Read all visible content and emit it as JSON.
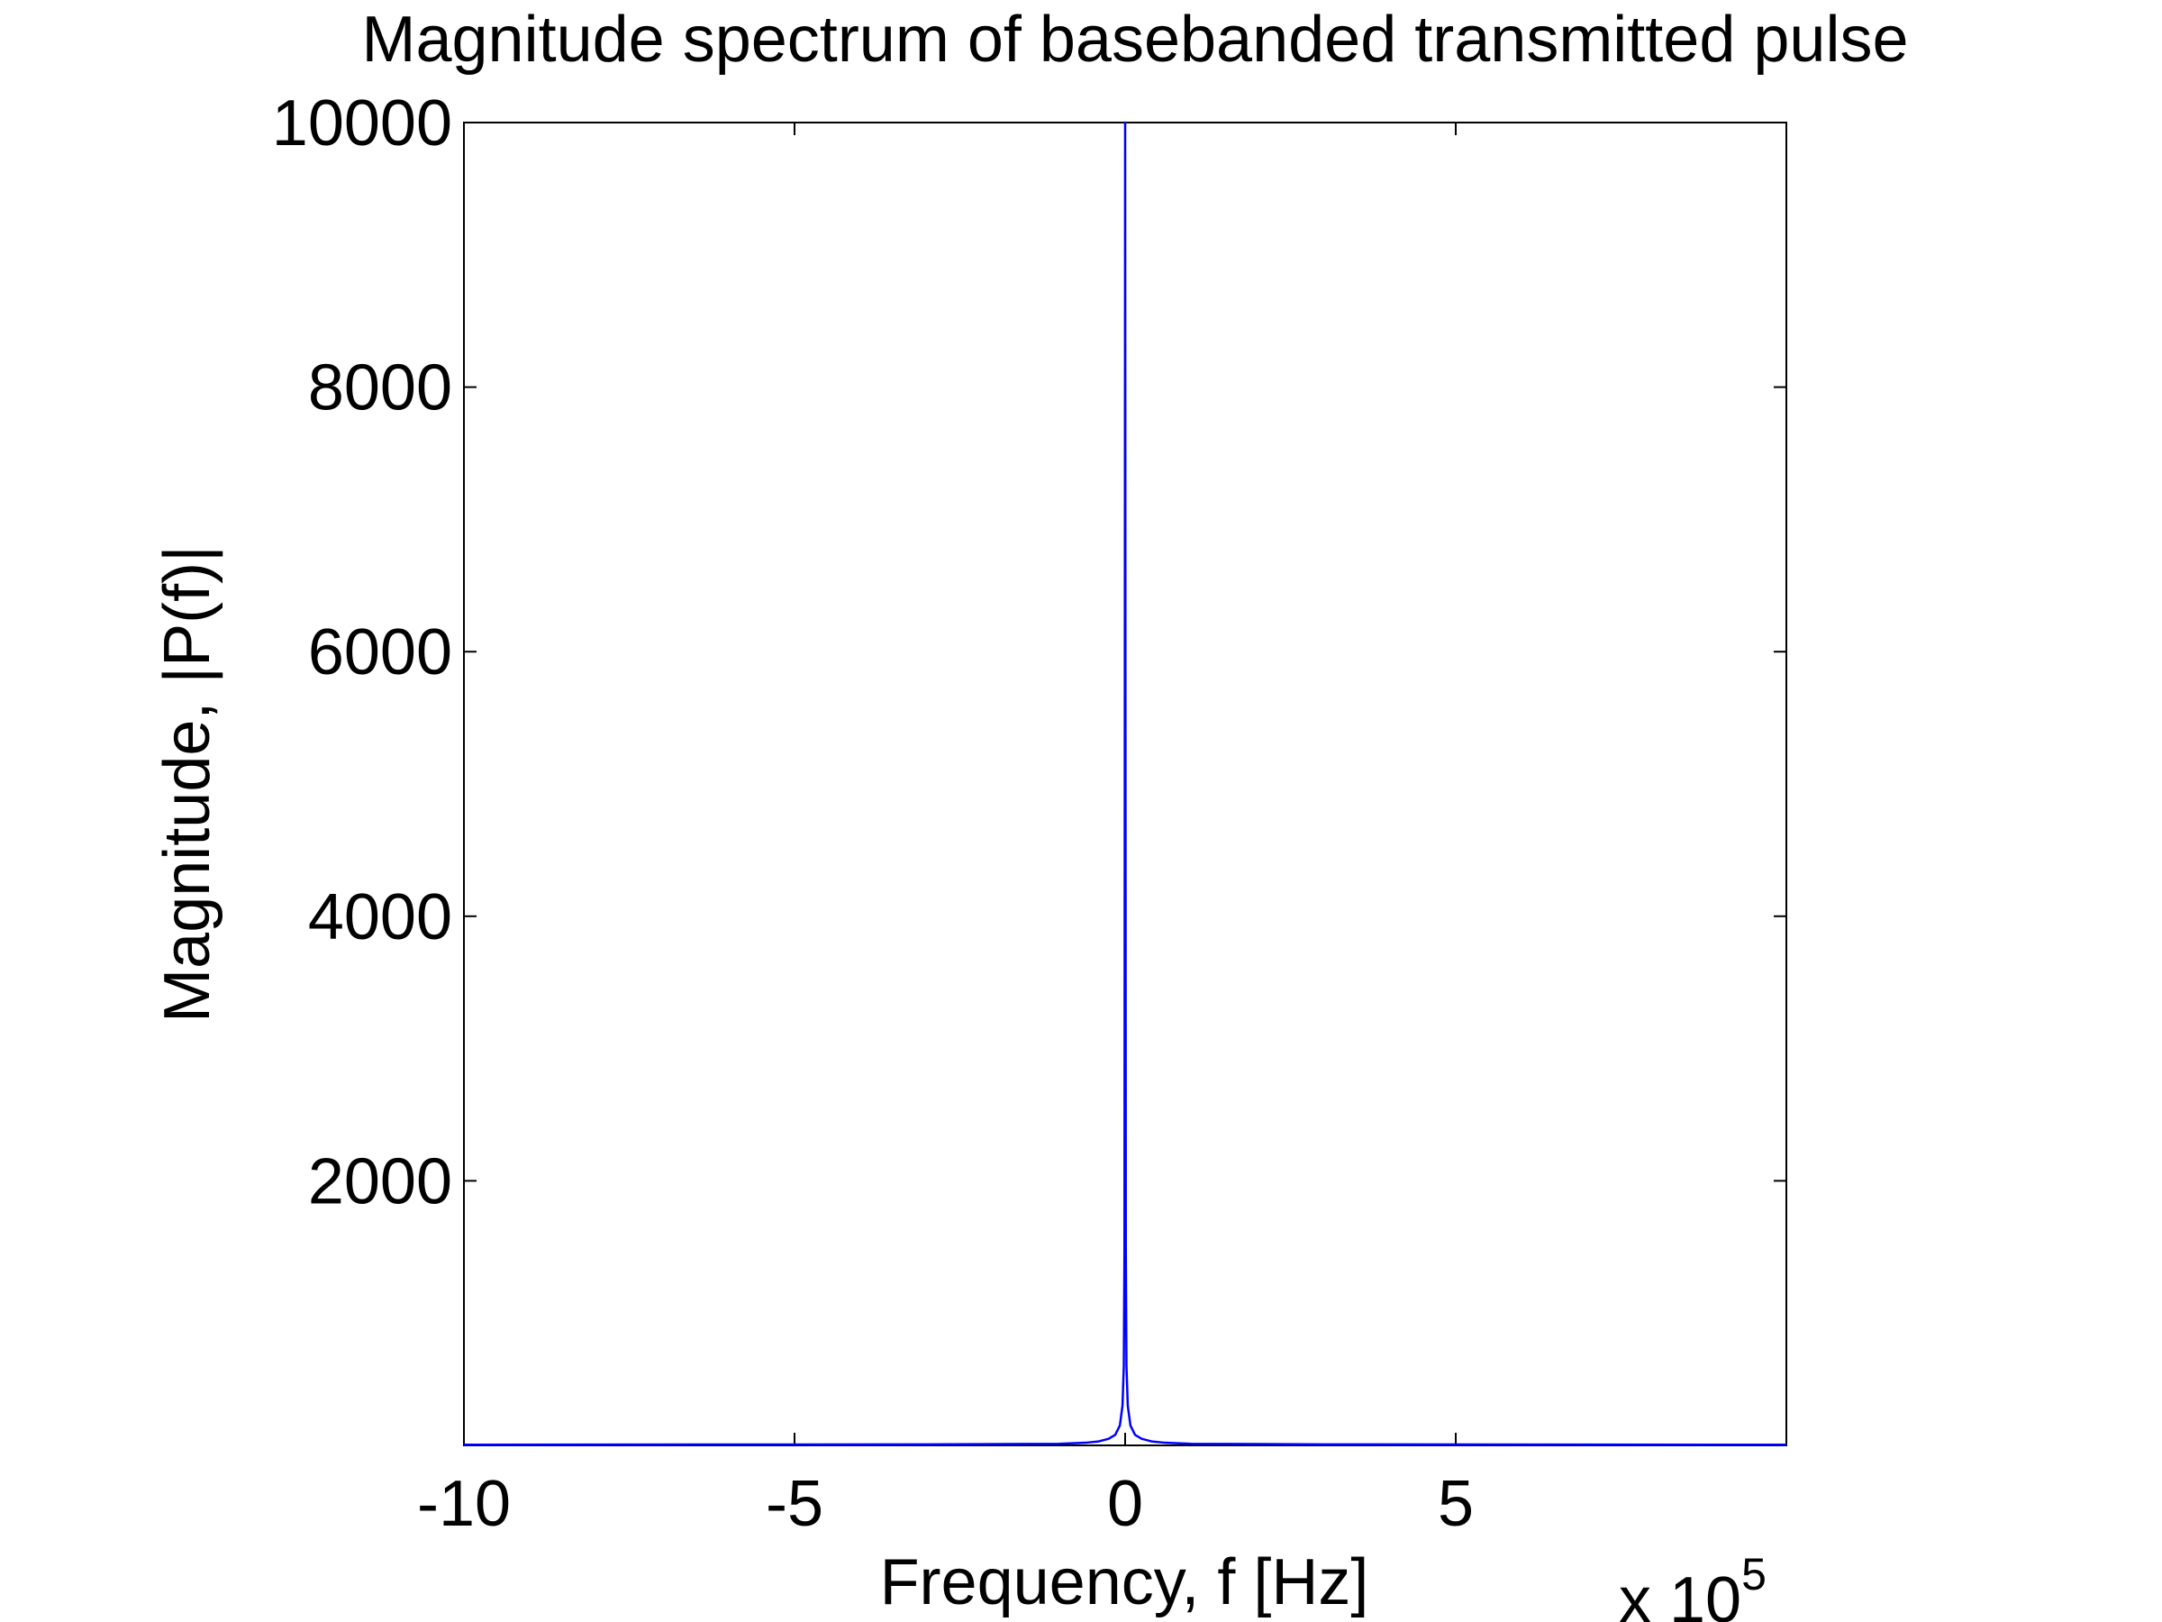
{
  "chart_data": {
    "type": "line",
    "title": "Magnitude spectrum of basebanded transmitted pulse",
    "xlabel": "Frequency, f [Hz]",
    "ylabel": "Magnitude, |P(f)|",
    "x_exponent_base": "x 10",
    "x_exponent_power": "5",
    "xlim": [
      -10,
      10
    ],
    "ylim": [
      0,
      10000
    ],
    "x_ticks": [
      -10,
      -5,
      0,
      5
    ],
    "x_tick_labels": [
      "-10",
      "-5",
      "0",
      "5"
    ],
    "y_ticks": [
      2000,
      4000,
      6000,
      8000,
      10000
    ],
    "y_tick_labels": [
      "2000",
      "4000",
      "6000",
      "8000",
      "10000"
    ],
    "grid": false,
    "legend": "none",
    "line_color": "#0000ff",
    "series": [
      {
        "x": [
          -10,
          -3,
          -1,
          -0.6,
          -0.4,
          -0.25,
          -0.15,
          -0.08,
          -0.04,
          -0.02,
          -0.01,
          0,
          0.01,
          0.02,
          0.04,
          0.08,
          0.15,
          0.25,
          0.4,
          0.6,
          1,
          3,
          10
        ],
        "y": [
          5,
          8,
          12,
          20,
          30,
          50,
          80,
          150,
          300,
          600,
          1500,
          10000,
          1500,
          600,
          300,
          150,
          80,
          50,
          30,
          20,
          12,
          8,
          5
        ]
      }
    ]
  }
}
